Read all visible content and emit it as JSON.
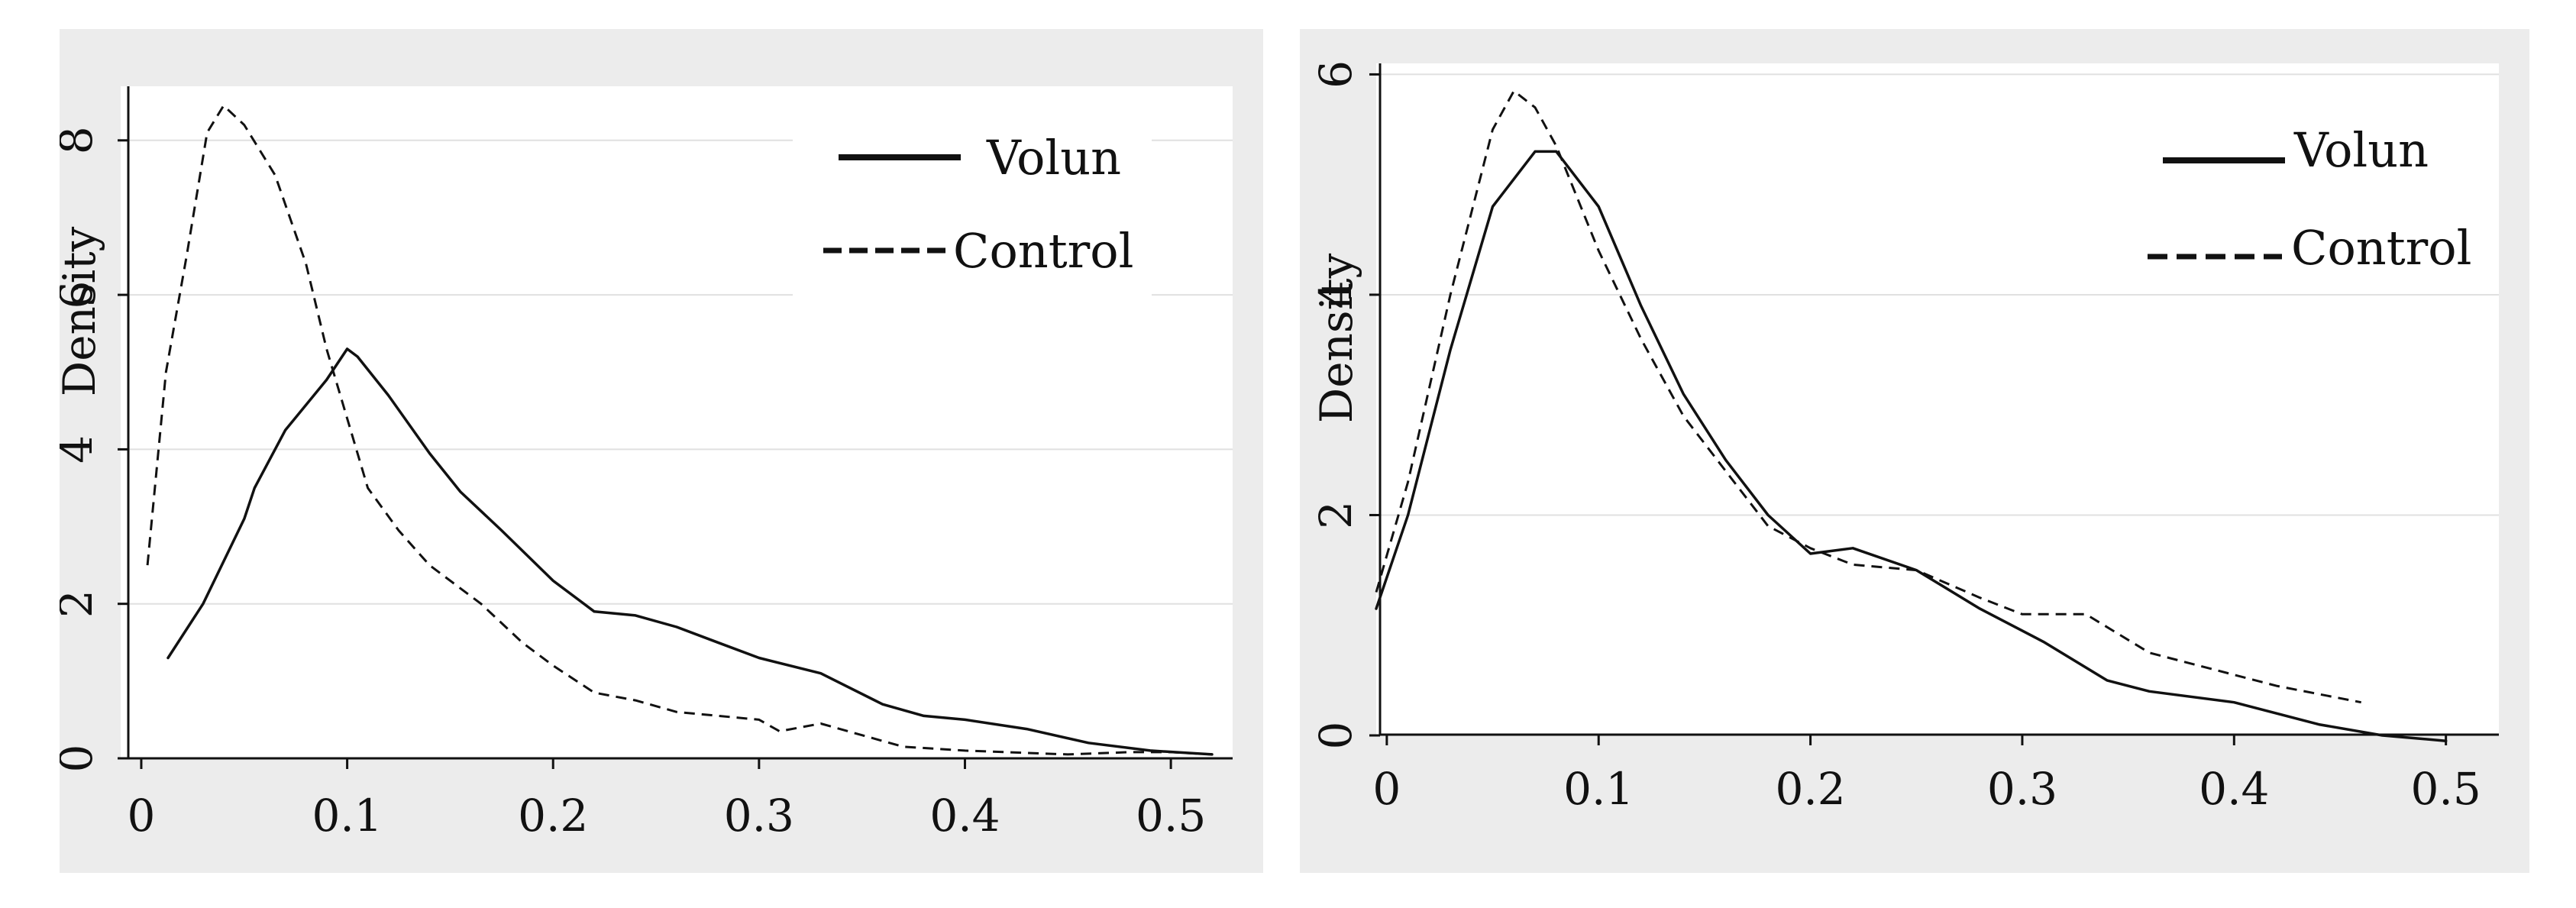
{
  "chart_data": [
    {
      "type": "line",
      "title": "",
      "xlabel": "",
      "ylabel": "Density",
      "xlim": [
        -0.01,
        0.53
      ],
      "ylim": [
        0,
        8.7
      ],
      "xticks": [
        0,
        0.1,
        0.2,
        0.3,
        0.4,
        0.5
      ],
      "xtick_labels": [
        "0",
        "0.1",
        "0.2",
        "0.3",
        "0.4",
        "0.5"
      ],
      "yticks": [
        0,
        2,
        4,
        6,
        8
      ],
      "ytick_labels": [
        "0",
        "2",
        "4",
        "6",
        "8"
      ],
      "grid": "horizontal",
      "legend": "top-right",
      "series": [
        {
          "name": "Volun",
          "style": "solid",
          "points": [
            [
              0.013,
              1.3
            ],
            [
              0.03,
              2.0
            ],
            [
              0.05,
              3.1
            ],
            [
              0.055,
              3.5
            ],
            [
              0.07,
              4.25
            ],
            [
              0.09,
              4.9
            ],
            [
              0.1,
              5.3
            ],
            [
              0.105,
              5.2
            ],
            [
              0.12,
              4.7
            ],
            [
              0.14,
              3.95
            ],
            [
              0.155,
              3.45
            ],
            [
              0.175,
              2.95
            ],
            [
              0.2,
              2.3
            ],
            [
              0.22,
              1.9
            ],
            [
              0.24,
              1.85
            ],
            [
              0.26,
              1.7
            ],
            [
              0.28,
              1.5
            ],
            [
              0.3,
              1.3
            ],
            [
              0.33,
              1.1
            ],
            [
              0.36,
              0.7
            ],
            [
              0.38,
              0.55
            ],
            [
              0.4,
              0.5
            ],
            [
              0.43,
              0.38
            ],
            [
              0.46,
              0.2
            ],
            [
              0.49,
              0.1
            ],
            [
              0.52,
              0.05
            ]
          ]
        },
        {
          "name": "Control",
          "style": "dashed",
          "points": [
            [
              0.003,
              2.5
            ],
            [
              0.012,
              5.0
            ],
            [
              0.022,
              6.5
            ],
            [
              0.032,
              8.1
            ],
            [
              0.04,
              8.45
            ],
            [
              0.05,
              8.2
            ],
            [
              0.065,
              7.55
            ],
            [
              0.08,
              6.4
            ],
            [
              0.09,
              5.3
            ],
            [
              0.1,
              4.4
            ],
            [
              0.11,
              3.5
            ],
            [
              0.125,
              2.95
            ],
            [
              0.14,
              2.5
            ],
            [
              0.165,
              2.0
            ],
            [
              0.185,
              1.5
            ],
            [
              0.2,
              1.2
            ],
            [
              0.22,
              0.85
            ],
            [
              0.24,
              0.75
            ],
            [
              0.26,
              0.6
            ],
            [
              0.3,
              0.5
            ],
            [
              0.31,
              0.35
            ],
            [
              0.33,
              0.45
            ],
            [
              0.35,
              0.3
            ],
            [
              0.37,
              0.15
            ],
            [
              0.4,
              0.1
            ],
            [
              0.45,
              0.05
            ],
            [
              0.48,
              0.08
            ],
            [
              0.5,
              0.08
            ],
            [
              0.52,
              0.05
            ]
          ]
        }
      ]
    },
    {
      "type": "line",
      "title": "",
      "xlabel": "",
      "ylabel": "Density",
      "xlim": [
        -0.005,
        0.525
      ],
      "ylim": [
        0,
        6.1
      ],
      "xticks": [
        0,
        0.1,
        0.2,
        0.3,
        0.4,
        0.5
      ],
      "xtick_labels": [
        "0",
        "0.1",
        "0.2",
        "0.3",
        "0.4",
        "0.5"
      ],
      "yticks": [
        0,
        2,
        4,
        6
      ],
      "ytick_labels": [
        "0",
        "2",
        "4",
        "6"
      ],
      "grid": "horizontal",
      "legend": "top-right",
      "series": [
        {
          "name": "Volun",
          "style": "solid",
          "points": [
            [
              -0.005,
              1.15
            ],
            [
              0.01,
              2.0
            ],
            [
              0.03,
              3.5
            ],
            [
              0.05,
              4.8
            ],
            [
              0.07,
              5.3
            ],
            [
              0.08,
              5.3
            ],
            [
              0.1,
              4.8
            ],
            [
              0.12,
              3.9
            ],
            [
              0.14,
              3.1
            ],
            [
              0.16,
              2.5
            ],
            [
              0.18,
              2.0
            ],
            [
              0.2,
              1.65
            ],
            [
              0.22,
              1.7
            ],
            [
              0.25,
              1.5
            ],
            [
              0.28,
              1.15
            ],
            [
              0.31,
              0.85
            ],
            [
              0.34,
              0.5
            ],
            [
              0.36,
              0.4
            ],
            [
              0.4,
              0.3
            ],
            [
              0.44,
              0.1
            ],
            [
              0.47,
              0.0
            ],
            [
              0.5,
              -0.05
            ]
          ]
        },
        {
          "name": "Control",
          "style": "dashed",
          "points": [
            [
              -0.005,
              1.3
            ],
            [
              0.01,
              2.3
            ],
            [
              0.03,
              4.0
            ],
            [
              0.05,
              5.5
            ],
            [
              0.06,
              5.85
            ],
            [
              0.07,
              5.7
            ],
            [
              0.08,
              5.35
            ],
            [
              0.1,
              4.4
            ],
            [
              0.12,
              3.6
            ],
            [
              0.14,
              2.9
            ],
            [
              0.16,
              2.4
            ],
            [
              0.18,
              1.9
            ],
            [
              0.2,
              1.7
            ],
            [
              0.22,
              1.55
            ],
            [
              0.25,
              1.5
            ],
            [
              0.28,
              1.25
            ],
            [
              0.3,
              1.1
            ],
            [
              0.33,
              1.1
            ],
            [
              0.36,
              0.75
            ],
            [
              0.39,
              0.6
            ],
            [
              0.42,
              0.45
            ],
            [
              0.46,
              0.3
            ]
          ]
        }
      ]
    }
  ]
}
